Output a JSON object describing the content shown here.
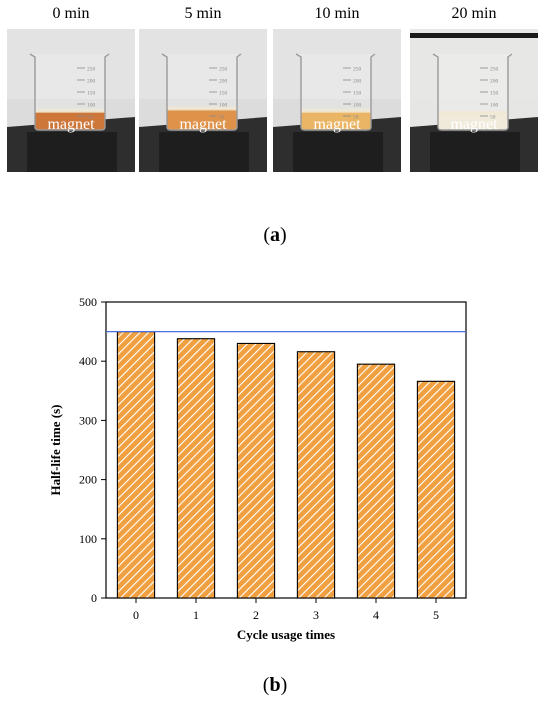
{
  "photos": [
    {
      "time": "0 min",
      "label": "magnet",
      "liquid_color": "#c45a10"
    },
    {
      "time": "5 min",
      "label": "magnet",
      "liquid_color": "#d87a22"
    },
    {
      "time": "10 min",
      "label": "magnet",
      "liquid_color": "#e6a645"
    },
    {
      "time": "20 min",
      "label": "magnet",
      "liquid_color": "#ece6d2"
    }
  ],
  "beaker_marks": [
    "250",
    "200",
    "150",
    "100",
    "50"
  ],
  "panel_a_label": "a",
  "panel_b_label": "b",
  "chart_data": {
    "type": "bar",
    "categories": [
      "0",
      "1",
      "2",
      "3",
      "4",
      "5"
    ],
    "values": [
      450,
      438,
      430,
      416,
      395,
      366
    ],
    "reference_line": 450,
    "reference_line_color": "#4a6fdc",
    "bar_color": "#f0a040",
    "bar_hatch": "diagonal",
    "xlabel": "Cycle usage times",
    "ylabel": "Half-life time (s)",
    "ylim": [
      0,
      500
    ],
    "yticks": [
      0,
      100,
      200,
      300,
      400,
      500
    ],
    "grid": false
  }
}
